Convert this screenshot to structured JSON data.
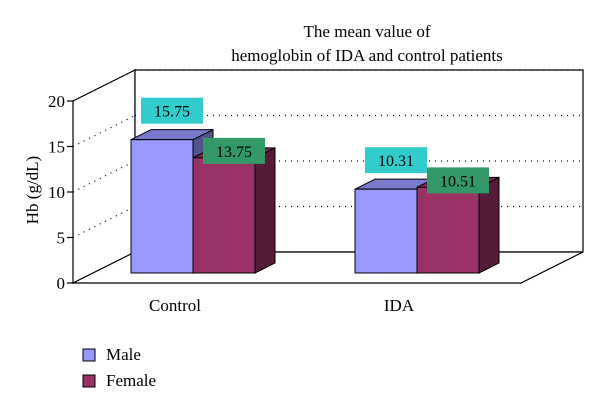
{
  "chart_data": {
    "type": "bar",
    "title_line1": "The mean value of",
    "title_line2": "hemoglobin of IDA and control patients",
    "xlabel": "",
    "ylabel": "Hb (g/dL)",
    "ylim": [
      0,
      20
    ],
    "yticks": [
      "0",
      "5",
      "10",
      "15",
      "20"
    ],
    "categories": [
      "Control",
      "IDA"
    ],
    "series": [
      {
        "name": "Male",
        "values": [
          15.75,
          10.31
        ],
        "labels": [
          "15.75",
          "10.31"
        ],
        "color": "#9999ff",
        "label_bg": "#33cccc"
      },
      {
        "name": "Female",
        "values": [
          13.75,
          10.51
        ],
        "labels": [
          "13.75",
          "10.51"
        ],
        "color": "#993366",
        "label_bg": "#339966"
      }
    ],
    "grid": true,
    "legend_position": "bottom-left",
    "style": "3d-clustered-bar"
  }
}
